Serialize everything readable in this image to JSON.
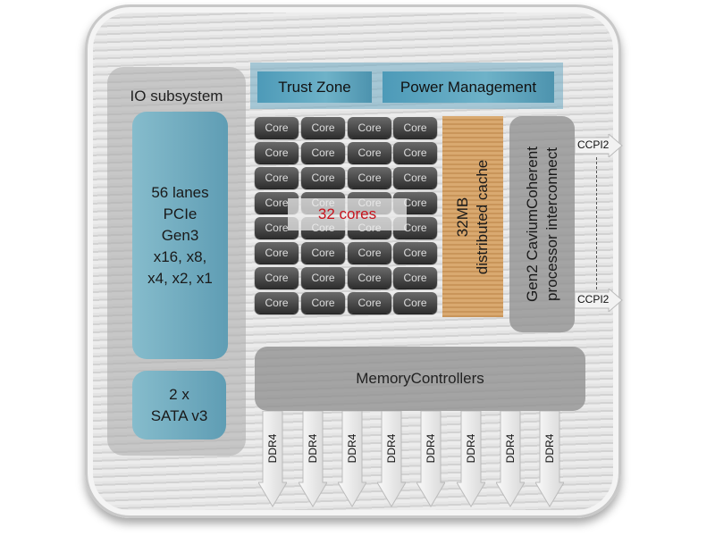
{
  "io_subsystem": {
    "label": "IO subsystem",
    "pcie": [
      "56 lanes",
      "PCIe",
      "Gen3",
      "x16, x8,",
      "x4, x2, x1"
    ],
    "sata": [
      "2 x",
      "SATA v3"
    ]
  },
  "top_strip": {
    "trust_zone": "Trust Zone",
    "power_management": "Power Management"
  },
  "cores": {
    "label": "Core",
    "count": 32,
    "rows": 8,
    "cols": 4,
    "overlay": "32 cores"
  },
  "cache": [
    "32MB",
    "distributed cache"
  ],
  "interconnect": [
    "Gen2 CaviumCoherent",
    "processor interconnect"
  ],
  "ccpi": [
    "CCPI2",
    "CCPI2"
  ],
  "memory_controllers": "MemoryControllers",
  "ddr": [
    "DDR4",
    "DDR4",
    "DDR4",
    "DDR4",
    "DDR4",
    "DDR4",
    "DDR4",
    "DDR4"
  ],
  "colors": {
    "io_blue": "#6fa9bf",
    "cache_orange": "#d4a066",
    "core_dark": "#3a3a3a",
    "overlay_red": "#c8141e"
  }
}
